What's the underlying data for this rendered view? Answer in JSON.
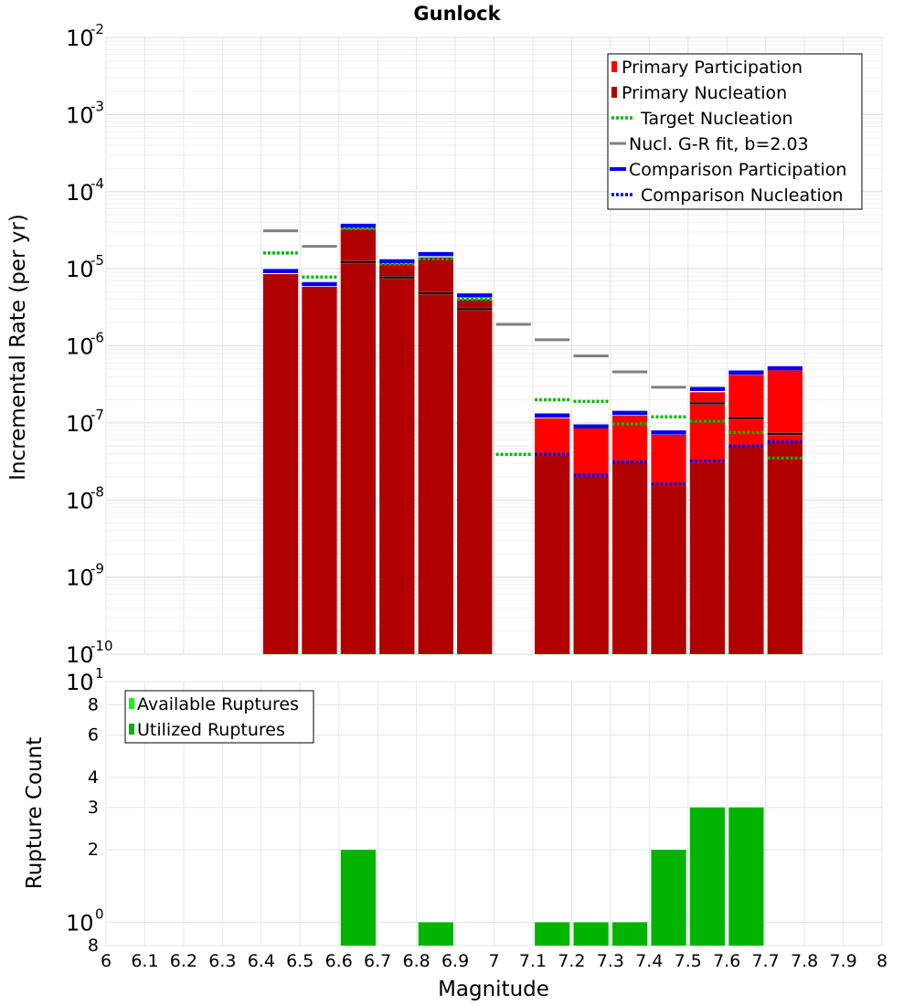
{
  "chart_data": [
    {
      "type": "bar",
      "title": "Gunlock",
      "ylabel": "Incremental Rate (per yr)",
      "yscale": "log",
      "ylim": [
        1e-10,
        0.01
      ],
      "xlim": [
        6,
        8
      ],
      "y_ticks": [
        {
          "base": "10",
          "exp": "-10"
        },
        {
          "base": "10",
          "exp": "-9"
        },
        {
          "base": "10",
          "exp": "-8"
        },
        {
          "base": "10",
          "exp": "-7"
        },
        {
          "base": "10",
          "exp": "-6"
        },
        {
          "base": "10",
          "exp": "-5"
        },
        {
          "base": "10",
          "exp": "-4"
        },
        {
          "base": "10",
          "exp": "-3"
        },
        {
          "base": "10",
          "exp": "-2"
        }
      ],
      "legend": [
        {
          "label": "Primary Participation",
          "color": "#ff0000",
          "style": "bar"
        },
        {
          "label": "Primary Nucleation",
          "color": "#b00000",
          "style": "bar"
        },
        {
          "label": "Target Nucleation",
          "color": "#00bb00",
          "style": "dotted"
        },
        {
          "label": "Nucl. G-R fit, b=2.03",
          "color": "#808080",
          "style": "solid"
        },
        {
          "label": "Comparison Participation",
          "color": "#0000ee",
          "style": "thick"
        },
        {
          "label": "Comparison Nucleation",
          "color": "#0000ee",
          "style": "dotted"
        }
      ],
      "legend_position": "top-right",
      "bins": [
        6.45,
        6.55,
        6.65,
        6.75,
        6.85,
        6.95,
        7.05,
        7.15,
        7.25,
        7.35,
        7.45,
        7.55,
        7.65,
        7.75
      ],
      "series": [
        {
          "name": "Primary Participation",
          "values": [
            8.5e-06,
            5.8e-06,
            3.3e-05,
            1.15e-05,
            1.4e-05,
            4e-06,
            null,
            1.15e-07,
            8.5e-08,
            1.25e-07,
            7e-08,
            2.5e-07,
            4.2e-07,
            4.8e-07
          ]
        },
        {
          "name": "Primary Nucleation",
          "values": [
            8.5e-06,
            5.8e-06,
            3.3e-05,
            1.15e-05,
            1.4e-05,
            4e-06,
            null,
            3.7e-08,
            2e-08,
            3e-08,
            1.5e-08,
            3e-08,
            4.8e-08,
            5.5e-08
          ]
        },
        {
          "name": "Target Nucleation",
          "values": [
            1.6e-05,
            7.8e-06,
            3.3e-05,
            1.15e-05,
            1.35e-05,
            4e-06,
            3.9e-08,
            2e-07,
            1.9e-07,
            9.7e-08,
            1.2e-07,
            1.05e-07,
            7.5e-08,
            3.5e-08
          ]
        },
        {
          "name": "Nucl. G-R fit, b=2.03",
          "values": [
            3.1e-05,
            1.95e-05,
            1.22e-05,
            7.7e-06,
            4.8e-06,
            3e-06,
            1.9e-06,
            1.2e-06,
            7.4e-07,
            4.6e-07,
            2.9e-07,
            1.8e-07,
            1.15e-07,
            7.2e-08
          ]
        },
        {
          "name": "Comparison Participation",
          "values": [
            9.3e-06,
            6.3e-06,
            3.6e-05,
            1.25e-05,
            1.55e-05,
            4.5e-06,
            null,
            1.25e-07,
            9e-08,
            1.35e-07,
            7.5e-08,
            2.75e-07,
            4.5e-07,
            5.1e-07
          ]
        },
        {
          "name": "Comparison Nucleation",
          "values": [
            9.3e-06,
            6.3e-06,
            3.6e-05,
            1.25e-05,
            1.55e-05,
            4.5e-06,
            null,
            3.9e-08,
            2.1e-08,
            3.1e-08,
            1.6e-08,
            3.2e-08,
            5e-08,
            5.7e-08
          ]
        }
      ]
    },
    {
      "type": "bar",
      "xlabel": "Magnitude",
      "ylabel": "Rupture Count",
      "yscale": "log",
      "ylim": [
        0.8,
        10
      ],
      "xlim": [
        6,
        8
      ],
      "x_ticks": [
        "6",
        "6.1",
        "6.2",
        "6.3",
        "6.4",
        "6.5",
        "6.6",
        "6.7",
        "6.8",
        "6.9",
        "7",
        "7.1",
        "7.2",
        "7.3",
        "7.4",
        "7.5",
        "7.6",
        "7.7",
        "7.8",
        "7.9",
        "8"
      ],
      "y_ticks": [
        {
          "value": 0.8,
          "label": "8",
          "exp": ""
        },
        {
          "value": 1,
          "label": "10",
          "exp": "0"
        },
        {
          "value": 2,
          "label": "2",
          "exp": ""
        },
        {
          "value": 3,
          "label": "3",
          "exp": ""
        },
        {
          "value": 4,
          "label": "4",
          "exp": ""
        },
        {
          "value": 6,
          "label": "6",
          "exp": ""
        },
        {
          "value": 8,
          "label": "8",
          "exp": ""
        },
        {
          "value": 10,
          "label": "10",
          "exp": "1"
        }
      ],
      "legend": [
        {
          "label": "Available Ruptures",
          "color": "#00ff00"
        },
        {
          "label": "Utilized Ruptures",
          "color": "#00b400"
        }
      ],
      "legend_position": "top-left",
      "bins": [
        6.65,
        6.85,
        7.15,
        7.25,
        7.35,
        7.45,
        7.55,
        7.65
      ],
      "series": [
        {
          "name": "Utilized Ruptures",
          "values": [
            2,
            1,
            1,
            1,
            1,
            2,
            3,
            3
          ]
        }
      ]
    }
  ]
}
